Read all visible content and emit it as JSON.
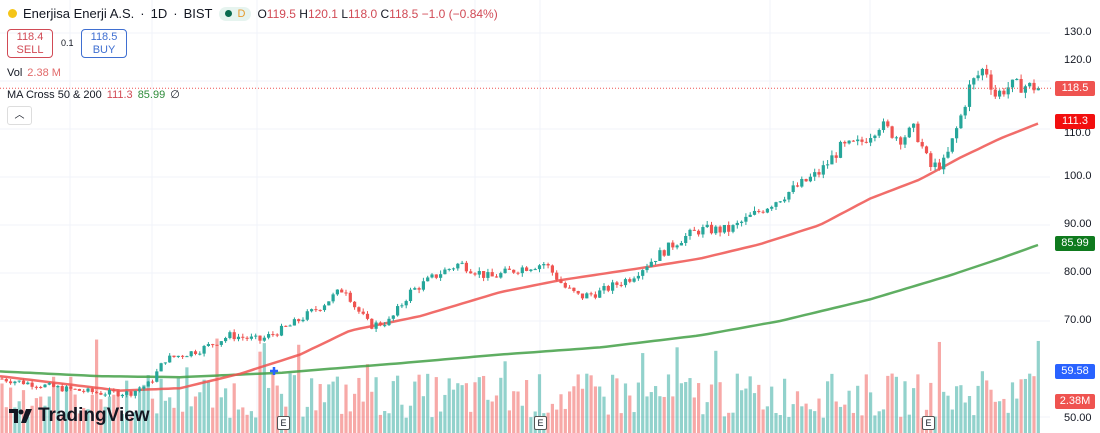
{
  "header": {
    "symbol": "Enerjisa Enerji A.S.",
    "interval": "1D",
    "exchange": "BIST",
    "badge_letter": "D",
    "open_label": "O",
    "open": "119.5",
    "high_label": "H",
    "high": "120.1",
    "low_label": "L",
    "low": "118.0",
    "close_label": "C",
    "close": "118.5",
    "change": "−1.0 (−0.84%)"
  },
  "trade": {
    "sell_price": "118.4",
    "sell_label": "SELL",
    "spread": "0.1",
    "buy_price": "118.5",
    "buy_label": "BUY"
  },
  "volume": {
    "label": "Vol",
    "value": "2.38 M"
  },
  "indicator": {
    "label": "MA Cross 50 & 200",
    "ma50": "111.3",
    "ma200": "85.99",
    "symbol": "∅"
  },
  "collapse_icon": "chevron-up-icon",
  "logo": "TradingView",
  "earnings_marker": "E",
  "price_labels": {
    "last": "118.5",
    "ma50": "111.3",
    "ma200": "85.99",
    "cross": "59.58",
    "volume": "2.38M"
  },
  "colors": {
    "up": "#26a69a",
    "down": "#ef5350",
    "ma50": "#ef5350",
    "ma200": "#43a047",
    "cross_label": "#2962ff"
  },
  "chart_data": {
    "type": "candlestick",
    "title": "Enerjisa Enerji A.S. · 1D · BIST",
    "y_ticks": [
      "130.0",
      "120.0",
      "110.0",
      "100.0",
      "90.00",
      "80.00",
      "70.00",
      "50.00"
    ],
    "y_tick_values": [
      130,
      120,
      110,
      100,
      90,
      80,
      70,
      50
    ],
    "ylim": [
      48,
      133
    ],
    "close_path": [
      [
        0,
        58
      ],
      [
        30,
        57
      ],
      [
        60,
        56
      ],
      [
        100,
        55
      ],
      [
        130,
        55
      ],
      [
        150,
        57
      ],
      [
        165,
        62
      ],
      [
        200,
        64
      ],
      [
        230,
        67
      ],
      [
        260,
        66
      ],
      [
        290,
        69
      ],
      [
        320,
        73
      ],
      [
        345,
        77
      ],
      [
        355,
        73
      ],
      [
        370,
        69
      ],
      [
        390,
        70
      ],
      [
        410,
        76
      ],
      [
        440,
        80
      ],
      [
        460,
        82
      ],
      [
        490,
        79
      ],
      [
        520,
        81
      ],
      [
        545,
        82
      ],
      [
        565,
        77
      ],
      [
        580,
        75
      ],
      [
        600,
        76
      ],
      [
        630,
        79
      ],
      [
        660,
        84
      ],
      [
        680,
        87
      ],
      [
        700,
        89
      ],
      [
        730,
        89
      ],
      [
        760,
        93
      ],
      [
        790,
        97
      ],
      [
        820,
        101
      ],
      [
        840,
        106
      ],
      [
        860,
        107
      ],
      [
        880,
        111
      ],
      [
        900,
        108
      ],
      [
        915,
        110
      ],
      [
        930,
        102
      ],
      [
        945,
        103
      ],
      [
        960,
        112
      ],
      [
        970,
        119
      ],
      [
        985,
        123
      ],
      [
        995,
        117
      ],
      [
        1010,
        119
      ],
      [
        1025,
        119
      ],
      [
        1040,
        118.5
      ]
    ],
    "ma50_path": [
      [
        0,
        58.5
      ],
      [
        60,
        57
      ],
      [
        120,
        55.5
      ],
      [
        180,
        56
      ],
      [
        240,
        59
      ],
      [
        300,
        63
      ],
      [
        350,
        68
      ],
      [
        420,
        71
      ],
      [
        500,
        76
      ],
      [
        560,
        78.5
      ],
      [
        640,
        81
      ],
      [
        700,
        83
      ],
      [
        760,
        86
      ],
      [
        820,
        90
      ],
      [
        870,
        95.5
      ],
      [
        920,
        99.5
      ],
      [
        960,
        104
      ],
      [
        1000,
        108
      ],
      [
        1040,
        111.3
      ]
    ],
    "ma200_path": [
      [
        0,
        59.5
      ],
      [
        100,
        58.5
      ],
      [
        180,
        58.3
      ],
      [
        280,
        59.2
      ],
      [
        400,
        61.2
      ],
      [
        500,
        63
      ],
      [
        600,
        64.5
      ],
      [
        700,
        67
      ],
      [
        780,
        70
      ],
      [
        870,
        74.5
      ],
      [
        950,
        79.5
      ],
      [
        1000,
        83
      ],
      [
        1040,
        85.99
      ]
    ],
    "volume_ylim": [
      0,
      100
    ],
    "ma_cross": {
      "price": 59.58
    }
  }
}
